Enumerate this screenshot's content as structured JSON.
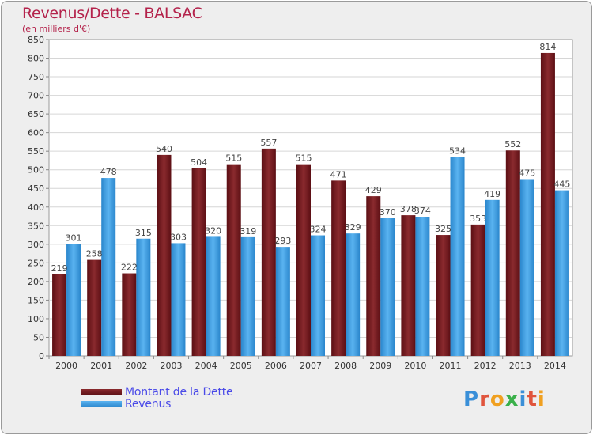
{
  "title": "Revenus/Dette - BALSAC",
  "subtitle": "(en milliers d'€)",
  "brand": "Proxiti",
  "chart_data": {
    "type": "bar",
    "categories": [
      "2000",
      "2001",
      "2002",
      "2003",
      "2004",
      "2005",
      "2006",
      "2007",
      "2008",
      "2009",
      "2010",
      "2011",
      "2012",
      "2013",
      "2014"
    ],
    "series": [
      {
        "name": "Montant de la Dette",
        "values": [
          219,
          258,
          222,
          540,
          504,
          515,
          557,
          515,
          471,
          429,
          378,
          325,
          353,
          552,
          814
        ],
        "color": "#7a1f24"
      },
      {
        "name": "Revenus",
        "values": [
          301,
          478,
          315,
          303,
          320,
          319,
          293,
          324,
          329,
          370,
          374,
          534,
          419,
          475,
          445
        ],
        "color": "#3a9be0"
      }
    ],
    "ylim": [
      0,
      850
    ],
    "yticks": [
      0,
      50,
      100,
      150,
      200,
      250,
      300,
      350,
      400,
      450,
      500,
      550,
      600,
      650,
      700,
      750,
      800,
      850
    ],
    "grid": true,
    "legend": "bottom-left"
  }
}
